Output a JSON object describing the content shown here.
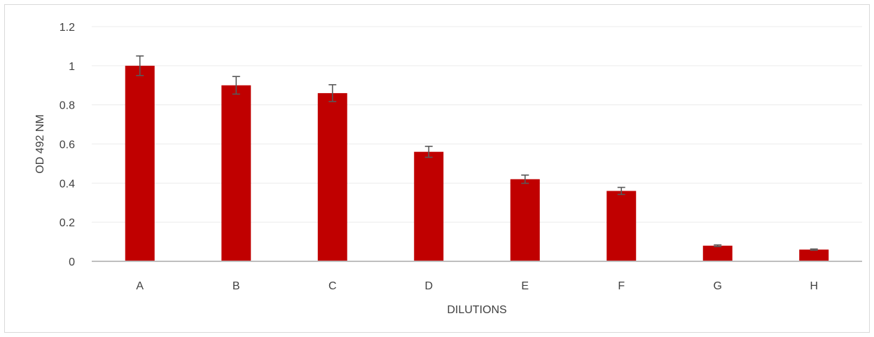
{
  "chart_data": {
    "type": "bar",
    "title": "",
    "xlabel": "DILUTIONS",
    "ylabel": "OD 492 NM",
    "categories": [
      "A",
      "B",
      "C",
      "D",
      "E",
      "F",
      "G",
      "H"
    ],
    "values": [
      1.0,
      0.9,
      0.86,
      0.56,
      0.42,
      0.36,
      0.08,
      0.06
    ],
    "errors": [
      0.05,
      0.045,
      0.043,
      0.028,
      0.021,
      0.018,
      0.004,
      0.003
    ],
    "ylim": [
      0,
      1.2
    ],
    "yticks": [
      "0",
      "0.2",
      "0.4",
      "0.6",
      "0.8",
      "1",
      "1.2"
    ],
    "grid": true,
    "legend": "none",
    "bar_color": "#c00000",
    "error_bar_color": "#595959",
    "gridline_color": "#ebebeb",
    "axis_line_color": "#bfbfbf"
  }
}
